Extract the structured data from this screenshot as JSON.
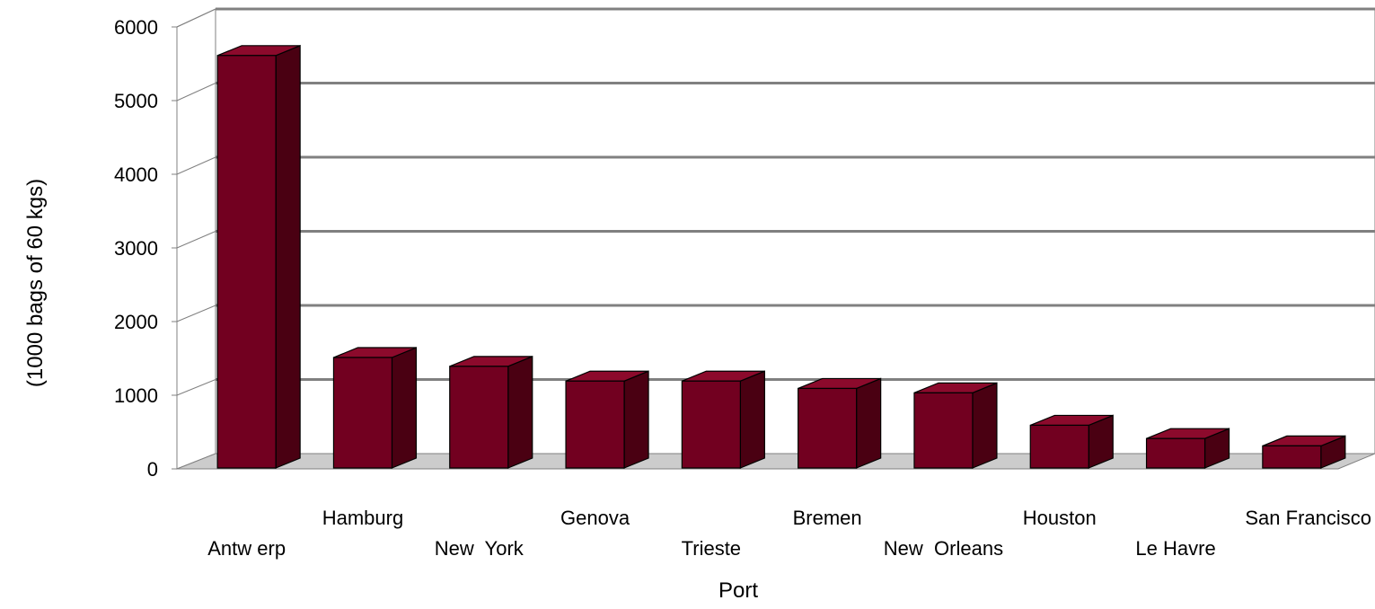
{
  "chart_data": {
    "type": "bar",
    "style": "3d",
    "title": "",
    "xlabel": "Port",
    "ylabel": "(1000 bags of 60 kgs)",
    "ylim": [
      0,
      6000
    ],
    "yticks": [
      "0",
      "1000",
      "2000",
      "3000",
      "4000",
      "5000",
      "6000"
    ],
    "grid": true,
    "categories": [
      "Antw erp",
      "Hamburg",
      "New  York",
      "Genova",
      "Trieste",
      "Bremen",
      "New  Orleans",
      "Houston",
      "Le Havre",
      "San Francisco"
    ],
    "values": [
      5600,
      1500,
      1380,
      1180,
      1180,
      1080,
      1020,
      580,
      400,
      300
    ],
    "colors": {
      "bar_front": "#720020",
      "bar_top": "#8c0a2c",
      "bar_side": "#4a0012",
      "floor": "#cccccc",
      "gridline": "#808080"
    }
  }
}
